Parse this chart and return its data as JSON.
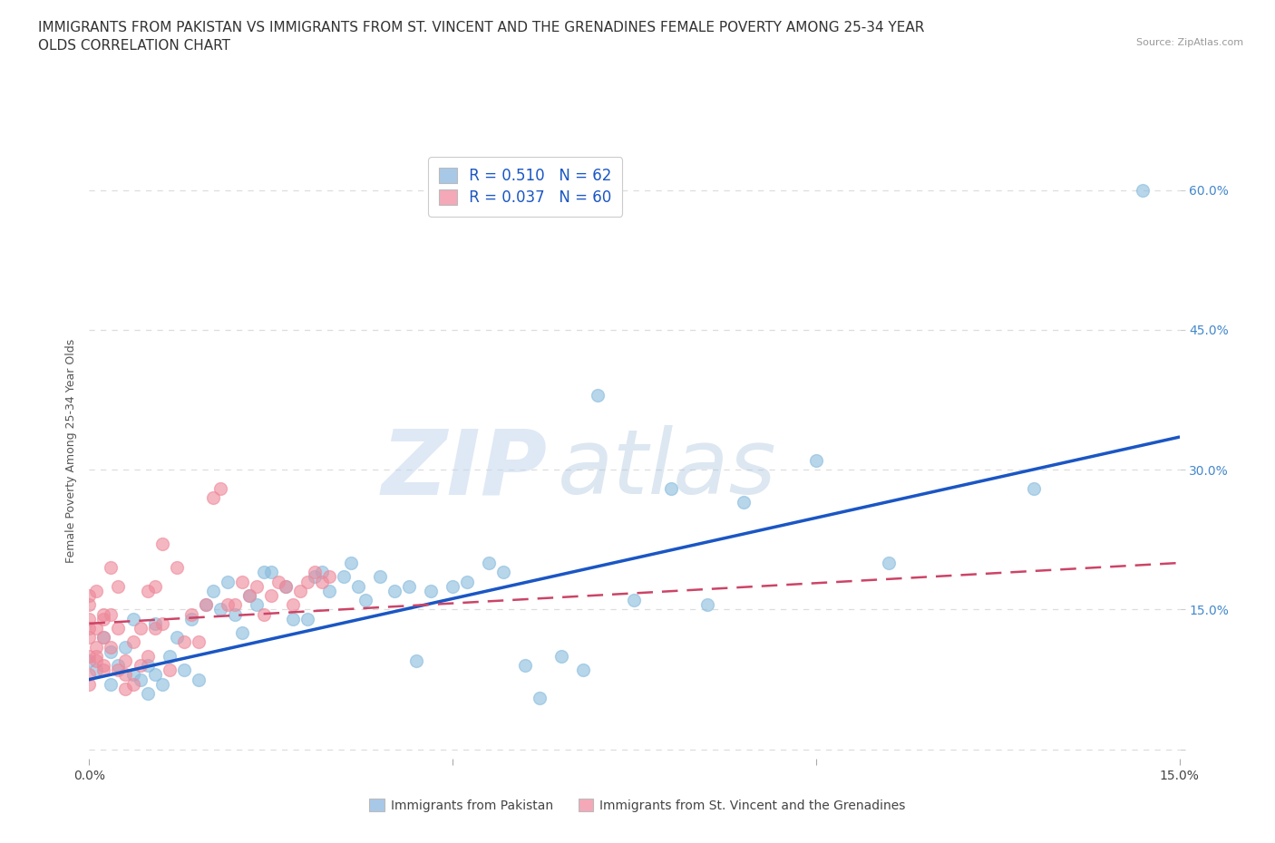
{
  "title": "IMMIGRANTS FROM PAKISTAN VS IMMIGRANTS FROM ST. VINCENT AND THE GRENADINES FEMALE POVERTY AMONG 25-34 YEAR\nOLDS CORRELATION CHART",
  "source_text": "Source: ZipAtlas.com",
  "ylabel": "Female Poverty Among 25-34 Year Olds",
  "legend_entries": [
    {
      "label": "Immigrants from Pakistan",
      "color": "#a8c8e8",
      "R": "0.510",
      "N": "62"
    },
    {
      "label": "Immigrants from St. Vincent and the Grenadines",
      "color": "#f4a8b8",
      "R": "0.037",
      "N": "60"
    }
  ],
  "watermark_zip": "ZIP",
  "watermark_atlas": "atlas",
  "background_color": "#ffffff",
  "plot_bg_color": "#ffffff",
  "grid_color": "#dddddd",
  "blue_line_color": "#1a56c4",
  "pink_line_color": "#cc4466",
  "scatter_blue_color": "#88bbdd",
  "scatter_pink_color": "#ee8899",
  "title_fontsize": 11,
  "axis_label_fontsize": 9,
  "tick_fontsize": 10,
  "right_tick_color": "#4488cc",
  "xlim": [
    0.0,
    0.15
  ],
  "ylim": [
    -0.01,
    0.65
  ],
  "blue_scatter_x": [
    0.0,
    0.001,
    0.002,
    0.003,
    0.003,
    0.004,
    0.005,
    0.006,
    0.006,
    0.007,
    0.008,
    0.008,
    0.009,
    0.009,
    0.01,
    0.011,
    0.012,
    0.013,
    0.014,
    0.015,
    0.016,
    0.017,
    0.018,
    0.019,
    0.02,
    0.021,
    0.022,
    0.023,
    0.024,
    0.025,
    0.027,
    0.028,
    0.03,
    0.031,
    0.032,
    0.033,
    0.035,
    0.036,
    0.037,
    0.038,
    0.04,
    0.042,
    0.044,
    0.045,
    0.047,
    0.05,
    0.052,
    0.055,
    0.057,
    0.06,
    0.062,
    0.065,
    0.068,
    0.07,
    0.075,
    0.08,
    0.085,
    0.09,
    0.1,
    0.11,
    0.13,
    0.145
  ],
  "blue_scatter_y": [
    0.095,
    0.085,
    0.12,
    0.07,
    0.105,
    0.09,
    0.11,
    0.14,
    0.08,
    0.075,
    0.06,
    0.09,
    0.08,
    0.135,
    0.07,
    0.1,
    0.12,
    0.085,
    0.14,
    0.075,
    0.155,
    0.17,
    0.15,
    0.18,
    0.145,
    0.125,
    0.165,
    0.155,
    0.19,
    0.19,
    0.175,
    0.14,
    0.14,
    0.185,
    0.19,
    0.17,
    0.185,
    0.2,
    0.175,
    0.16,
    0.185,
    0.17,
    0.175,
    0.095,
    0.17,
    0.175,
    0.18,
    0.2,
    0.19,
    0.09,
    0.055,
    0.1,
    0.085,
    0.38,
    0.16,
    0.28,
    0.155,
    0.265,
    0.31,
    0.2,
    0.28,
    0.6
  ],
  "pink_scatter_x": [
    0.0,
    0.0,
    0.0,
    0.0,
    0.0,
    0.0,
    0.0,
    0.0,
    0.001,
    0.001,
    0.001,
    0.001,
    0.001,
    0.002,
    0.002,
    0.002,
    0.002,
    0.002,
    0.003,
    0.003,
    0.003,
    0.004,
    0.004,
    0.004,
    0.005,
    0.005,
    0.005,
    0.006,
    0.006,
    0.007,
    0.007,
    0.008,
    0.008,
    0.009,
    0.009,
    0.01,
    0.01,
    0.011,
    0.012,
    0.013,
    0.014,
    0.015,
    0.016,
    0.017,
    0.018,
    0.019,
    0.02,
    0.021,
    0.022,
    0.023,
    0.024,
    0.025,
    0.026,
    0.027,
    0.028,
    0.029,
    0.03,
    0.031,
    0.032,
    0.033
  ],
  "pink_scatter_y": [
    0.1,
    0.12,
    0.13,
    0.14,
    0.155,
    0.165,
    0.07,
    0.08,
    0.1,
    0.11,
    0.13,
    0.17,
    0.095,
    0.09,
    0.12,
    0.14,
    0.145,
    0.085,
    0.11,
    0.145,
    0.195,
    0.085,
    0.13,
    0.175,
    0.08,
    0.095,
    0.065,
    0.07,
    0.115,
    0.09,
    0.13,
    0.1,
    0.17,
    0.13,
    0.175,
    0.135,
    0.22,
    0.085,
    0.195,
    0.115,
    0.145,
    0.115,
    0.155,
    0.27,
    0.28,
    0.155,
    0.155,
    0.18,
    0.165,
    0.175,
    0.145,
    0.165,
    0.18,
    0.175,
    0.155,
    0.17,
    0.18,
    0.19,
    0.18,
    0.185
  ],
  "blue_line_x": [
    0.0,
    0.15
  ],
  "blue_line_y": [
    0.075,
    0.335
  ],
  "pink_line_x": [
    0.0,
    0.15
  ],
  "pink_line_y": [
    0.135,
    0.2
  ]
}
